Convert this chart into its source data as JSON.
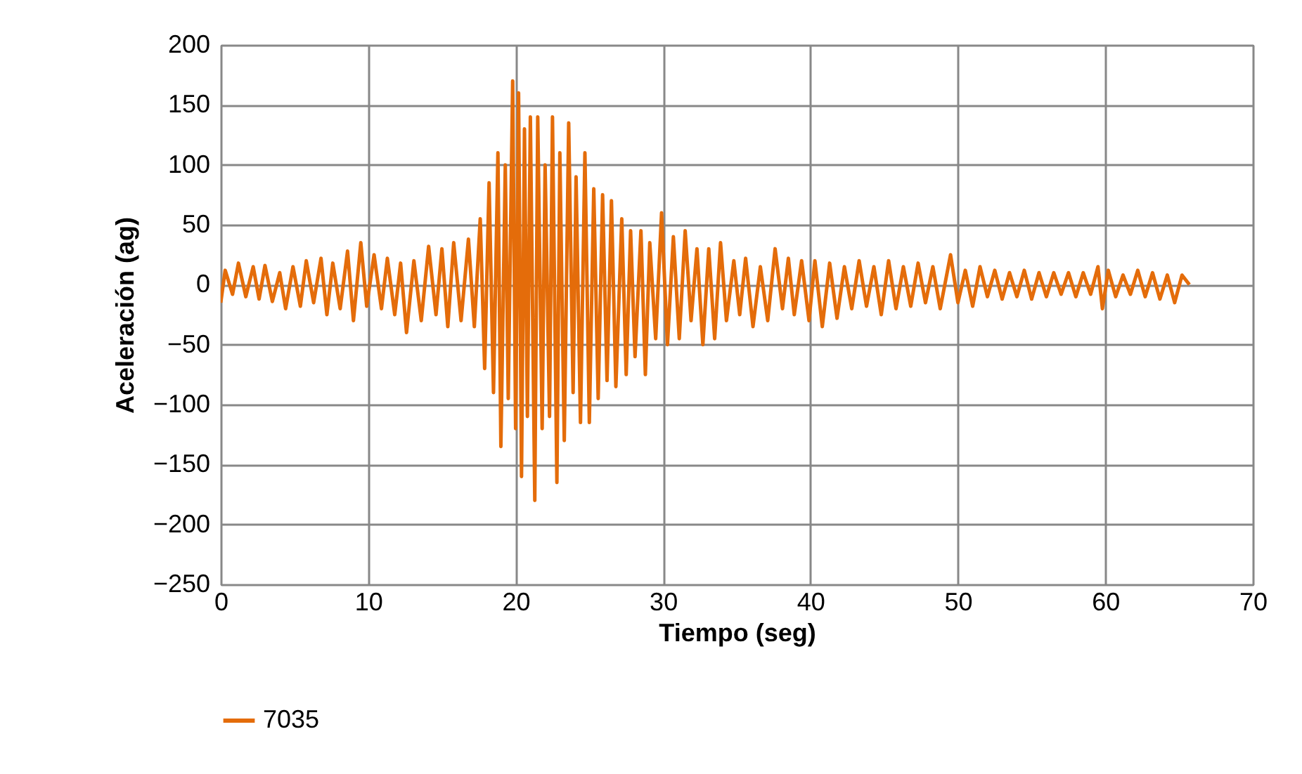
{
  "chart_data": {
    "type": "line",
    "xlabel": "Tiempo (seg)",
    "ylabel": "Aceleración (ag)",
    "xlim": [
      0,
      70
    ],
    "xticks": [
      0,
      10,
      20,
      30,
      40,
      50,
      60,
      70
    ],
    "ylim": [
      -250,
      200
    ],
    "yticks": [
      -250,
      -200,
      -150,
      -100,
      -50,
      0,
      50,
      100,
      150,
      200
    ],
    "grid": true,
    "legend": "bottom",
    "series": [
      {
        "name": "7035",
        "color": "#e46c0a",
        "x": [
          0,
          0.3,
          0.8,
          1.2,
          1.7,
          2.2,
          2.6,
          3.0,
          3.5,
          4.0,
          4.4,
          4.9,
          5.4,
          5.8,
          6.3,
          6.8,
          7.2,
          7.6,
          8.1,
          8.6,
          9.0,
          9.5,
          9.9,
          10.4,
          10.9,
          11.3,
          11.8,
          12.2,
          12.6,
          13.1,
          13.6,
          14.1,
          14.6,
          15.0,
          15.4,
          15.8,
          16.3,
          16.8,
          17.2,
          17.6,
          17.9,
          18.2,
          18.5,
          18.8,
          19.0,
          19.3,
          19.5,
          19.8,
          20.0,
          20.2,
          20.4,
          20.6,
          20.8,
          21.0,
          21.3,
          21.5,
          21.8,
          22.0,
          22.3,
          22.5,
          22.8,
          23.0,
          23.3,
          23.6,
          23.9,
          24.1,
          24.4,
          24.7,
          25.0,
          25.3,
          25.6,
          25.9,
          26.2,
          26.5,
          26.8,
          27.2,
          27.5,
          27.8,
          28.1,
          28.5,
          28.8,
          29.1,
          29.5,
          29.9,
          30.3,
          30.7,
          31.1,
          31.5,
          31.9,
          32.3,
          32.7,
          33.1,
          33.5,
          33.9,
          34.3,
          34.8,
          35.2,
          35.6,
          36.1,
          36.6,
          37.1,
          37.6,
          38.1,
          38.5,
          38.9,
          39.4,
          39.9,
          40.3,
          40.8,
          41.3,
          41.8,
          42.3,
          42.8,
          43.3,
          43.8,
          44.3,
          44.8,
          45.3,
          45.8,
          46.3,
          46.8,
          47.3,
          47.8,
          48.3,
          48.8,
          49.5,
          50.0,
          50.5,
          51.0,
          51.5,
          52.0,
          52.5,
          53.0,
          53.5,
          54.0,
          54.5,
          55.0,
          55.5,
          56.0,
          56.5,
          57.0,
          57.5,
          58.0,
          58.5,
          59.0,
          59.5,
          59.8,
          60.2,
          60.7,
          61.2,
          61.7,
          62.2,
          62.7,
          63.2,
          63.7,
          64.2,
          64.7,
          65.2,
          65.7
        ],
        "values": [
          -15,
          12,
          -8,
          18,
          -10,
          15,
          -12,
          16,
          -14,
          10,
          -20,
          15,
          -18,
          20,
          -15,
          22,
          -25,
          18,
          -20,
          28,
          -30,
          35,
          -18,
          25,
          -20,
          22,
          -25,
          18,
          -40,
          20,
          -30,
          32,
          -25,
          30,
          -35,
          35,
          -30,
          38,
          -35,
          55,
          -70,
          85,
          -90,
          110,
          -135,
          100,
          -95,
          170,
          -120,
          160,
          -160,
          130,
          -110,
          140,
          -180,
          140,
          -120,
          100,
          -110,
          140,
          -165,
          110,
          -130,
          135,
          -90,
          90,
          -115,
          110,
          -115,
          80,
          -95,
          75,
          -80,
          70,
          -85,
          55,
          -75,
          45,
          -60,
          45,
          -75,
          35,
          -45,
          60,
          -50,
          40,
          -45,
          45,
          -30,
          30,
          -50,
          30,
          -45,
          35,
          -30,
          20,
          -25,
          22,
          -35,
          15,
          -30,
          30,
          -20,
          22,
          -25,
          20,
          -30,
          20,
          -35,
          18,
          -28,
          15,
          -20,
          20,
          -18,
          15,
          -25,
          20,
          -20,
          15,
          -18,
          18,
          -15,
          15,
          -20,
          25,
          -15,
          12,
          -18,
          15,
          -10,
          12,
          -12,
          10,
          -10,
          12,
          -12,
          10,
          -10,
          10,
          -8,
          10,
          -10,
          10,
          -8,
          15,
          -20,
          12,
          -10,
          8,
          -8,
          12,
          -10,
          10,
          -12,
          8,
          -15,
          8,
          0
        ]
      }
    ]
  }
}
